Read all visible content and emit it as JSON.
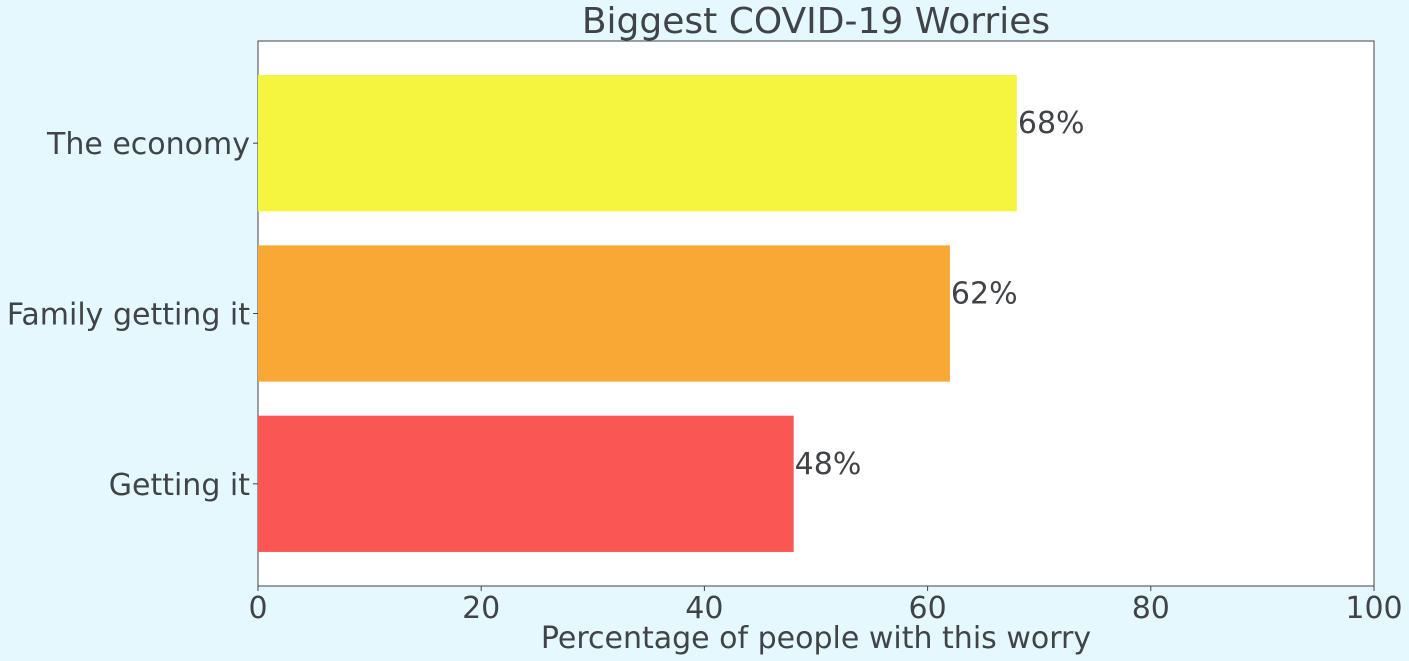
{
  "chart_data": {
    "type": "bar",
    "orientation": "horizontal",
    "title": "Biggest COVID-19 Worries",
    "xlabel": "Percentage of people with this worry",
    "ylabel": "",
    "xlim": [
      0,
      100
    ],
    "x_ticks": [
      0,
      20,
      40,
      60,
      80,
      100
    ],
    "grid": false,
    "categories": [
      "Getting it",
      "Family getting it",
      "The economy"
    ],
    "values": [
      48,
      62,
      68
    ],
    "value_labels": [
      "48%",
      "62%",
      "68%"
    ],
    "bar_colors": [
      "#f95654",
      "#f8a935",
      "#f5f43f"
    ],
    "colors": {
      "figure_background": "#e5f8fe",
      "plot_background": "#ffffff",
      "text": "#404448"
    }
  }
}
